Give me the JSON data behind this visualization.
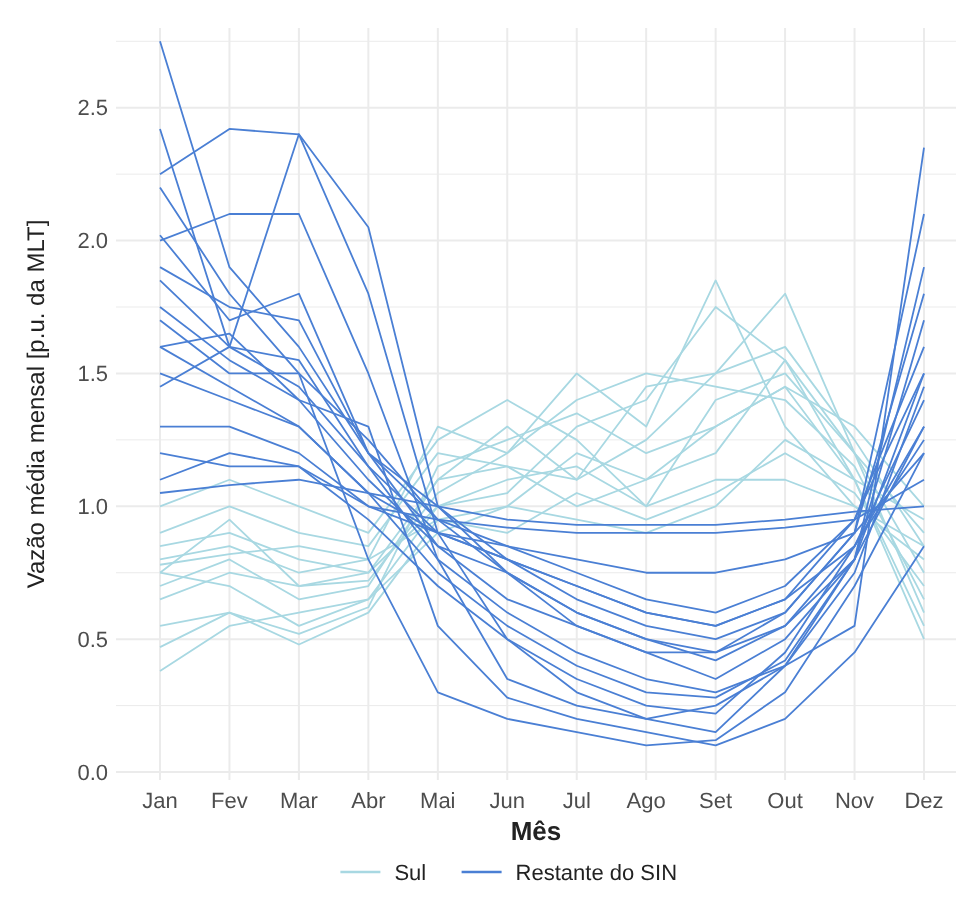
{
  "chart_data": {
    "type": "line",
    "xlabel": "Mês",
    "ylabel": "Vazão média mensal [p.u. da MLT]",
    "categories": [
      "Jan",
      "Fev",
      "Mar",
      "Abr",
      "Mai",
      "Jun",
      "Jul",
      "Ago",
      "Set",
      "Out",
      "Nov",
      "Dez"
    ],
    "ylim": [
      -0.03,
      2.8
    ],
    "yticks": [
      {
        "value": 0,
        "label": "0.0"
      },
      {
        "value": 0.25,
        "label": null
      },
      {
        "value": 0.5,
        "label": "0.5"
      },
      {
        "value": 0.75,
        "label": null
      },
      {
        "value": 1,
        "label": "1.0"
      },
      {
        "value": 1.25,
        "label": null
      },
      {
        "value": 1.5,
        "label": "1.5"
      },
      {
        "value": 1.75,
        "label": null
      },
      {
        "value": 2,
        "label": "2.0"
      },
      {
        "value": 2.25,
        "label": null
      },
      {
        "value": 2.5,
        "label": "2.5"
      },
      {
        "value": 2.75,
        "label": null
      }
    ],
    "grid": true,
    "legend": "bottom",
    "series": [
      {
        "name": "Sul",
        "color": "#a8d8e2",
        "values": [
          0.75,
          0.95,
          0.7,
          0.75,
          1.0,
          1.1,
          1.15,
          1.0,
          1.4,
          1.5,
          1.2,
          0.9
        ]
      },
      {
        "color": "#a8d8e2",
        "values": [
          0.8,
          0.85,
          0.75,
          0.8,
          1.3,
          1.2,
          1.5,
          1.3,
          1.85,
          1.3,
          1.0,
          0.8
        ]
      },
      {
        "color": "#a8d8e2",
        "values": [
          0.7,
          0.8,
          0.65,
          0.7,
          1.1,
          1.3,
          1.1,
          1.45,
          1.5,
          1.8,
          1.2,
          0.6
        ]
      },
      {
        "color": "#a8d8e2",
        "values": [
          0.38,
          0.55,
          0.6,
          0.65,
          0.9,
          1.0,
          1.2,
          1.1,
          1.2,
          1.55,
          1.1,
          0.5
        ]
      },
      {
        "color": "#a8d8e2",
        "values": [
          0.9,
          1.0,
          0.9,
          0.85,
          1.2,
          1.15,
          1.0,
          1.1,
          1.3,
          1.45,
          1.3,
          1.0
        ]
      },
      {
        "color": "#a8d8e2",
        "values": [
          1.0,
          1.1,
          1.0,
          0.9,
          1.25,
          1.4,
          1.25,
          1.0,
          1.1,
          1.1,
          1.0,
          0.85
        ]
      },
      {
        "color": "#a8d8e2",
        "values": [
          0.55,
          0.6,
          0.48,
          0.6,
          0.95,
          0.9,
          1.05,
          0.95,
          1.05,
          1.2,
          1.05,
          0.7
        ]
      },
      {
        "color": "#a8d8e2",
        "values": [
          0.75,
          0.7,
          0.55,
          0.65,
          1.0,
          1.05,
          1.3,
          1.4,
          1.75,
          1.55,
          1.2,
          0.75
        ]
      },
      {
        "color": "#a8d8e2",
        "values": [
          0.85,
          0.9,
          0.8,
          0.75,
          1.1,
          1.15,
          1.1,
          1.25,
          1.5,
          1.6,
          1.25,
          0.85
        ]
      },
      {
        "color": "#a8d8e2",
        "values": [
          0.65,
          0.75,
          0.7,
          0.72,
          1.05,
          1.2,
          1.4,
          1.5,
          1.45,
          1.4,
          1.15,
          0.65
        ]
      },
      {
        "color": "#a8d8e2",
        "values": [
          0.78,
          0.82,
          0.85,
          0.8,
          0.95,
          1.0,
          0.95,
          0.9,
          1.0,
          1.25,
          1.1,
          0.95
        ]
      },
      {
        "color": "#a8d8e2",
        "values": [
          0.47,
          0.6,
          0.52,
          0.62,
          1.15,
          1.25,
          1.35,
          1.2,
          1.3,
          1.45,
          1.1,
          0.55
        ]
      },
      {
        "name": "Restante do SIN",
        "color": "#4a7fd4",
        "values": [
          2.75,
          1.9,
          1.6,
          1.2,
          1.0,
          0.8,
          0.65,
          0.55,
          0.5,
          0.6,
          0.9,
          1.8
        ]
      },
      {
        "color": "#4a7fd4",
        "values": [
          2.42,
          1.6,
          2.4,
          1.8,
          0.9,
          0.5,
          0.3,
          0.2,
          0.15,
          0.4,
          0.8,
          1.5
        ]
      },
      {
        "color": "#4a7fd4",
        "values": [
          2.25,
          2.42,
          2.4,
          2.05,
          1.0,
          0.75,
          0.55,
          0.45,
          0.45,
          0.55,
          0.8,
          1.3
        ]
      },
      {
        "color": "#4a7fd4",
        "values": [
          2.0,
          2.1,
          2.1,
          1.5,
          0.8,
          0.35,
          0.25,
          0.2,
          0.25,
          0.4,
          0.55,
          2.35
        ]
      },
      {
        "color": "#4a7fd4",
        "values": [
          2.02,
          1.7,
          1.8,
          1.2,
          0.95,
          0.75,
          0.6,
          0.5,
          0.45,
          0.6,
          0.9,
          2.1
        ]
      },
      {
        "color": "#4a7fd4",
        "values": [
          1.85,
          1.6,
          1.45,
          1.15,
          0.9,
          0.8,
          0.7,
          0.6,
          0.55,
          0.65,
          0.95,
          1.6
        ]
      },
      {
        "color": "#4a7fd4",
        "values": [
          1.7,
          1.5,
          1.5,
          1.25,
          0.95,
          0.85,
          0.75,
          0.65,
          0.6,
          0.7,
          0.95,
          1.5
        ]
      },
      {
        "color": "#4a7fd4",
        "values": [
          1.6,
          1.65,
          1.4,
          1.1,
          0.85,
          0.75,
          0.6,
          0.5,
          0.42,
          0.55,
          0.85,
          1.4
        ]
      },
      {
        "color": "#4a7fd4",
        "values": [
          1.5,
          1.4,
          1.3,
          1.05,
          0.9,
          0.85,
          0.8,
          0.75,
          0.75,
          0.8,
          0.9,
          1.2
        ]
      },
      {
        "color": "#4a7fd4",
        "values": [
          1.3,
          1.3,
          1.2,
          1.0,
          0.95,
          0.92,
          0.9,
          0.9,
          0.9,
          0.92,
          0.95,
          1.1
        ]
      },
      {
        "color": "#4a7fd4",
        "values": [
          1.05,
          1.08,
          1.1,
          1.05,
          1.0,
          0.95,
          0.93,
          0.93,
          0.93,
          0.95,
          0.98,
          1.0
        ]
      },
      {
        "color": "#4a7fd4",
        "values": [
          1.2,
          1.15,
          1.15,
          1.0,
          0.9,
          0.8,
          0.7,
          0.6,
          0.55,
          0.65,
          0.85,
          1.25
        ]
      },
      {
        "color": "#4a7fd4",
        "values": [
          1.75,
          1.55,
          1.4,
          1.3,
          0.55,
          0.28,
          0.2,
          0.15,
          0.1,
          0.2,
          0.45,
          0.85
        ]
      },
      {
        "color": "#4a7fd4",
        "values": [
          1.9,
          1.75,
          1.7,
          1.2,
          0.85,
          0.65,
          0.55,
          0.45,
          0.35,
          0.5,
          0.8,
          1.7
        ]
      },
      {
        "color": "#4a7fd4",
        "values": [
          1.45,
          1.6,
          1.55,
          1.15,
          0.8,
          0.6,
          0.45,
          0.35,
          0.3,
          0.4,
          0.75,
          1.45
        ]
      },
      {
        "color": "#4a7fd4",
        "values": [
          1.6,
          1.45,
          1.3,
          1.05,
          0.75,
          0.55,
          0.4,
          0.3,
          0.28,
          0.42,
          0.8,
          1.9
        ]
      },
      {
        "color": "#4a7fd4",
        "values": [
          1.1,
          1.2,
          1.15,
          0.95,
          0.7,
          0.5,
          0.35,
          0.25,
          0.22,
          0.45,
          0.85,
          1.3
        ]
      },
      {
        "color": "#4a7fd4",
        "values": [
          2.2,
          1.8,
          1.5,
          0.8,
          0.3,
          0.2,
          0.15,
          0.1,
          0.12,
          0.3,
          0.7,
          1.2
        ]
      }
    ]
  }
}
